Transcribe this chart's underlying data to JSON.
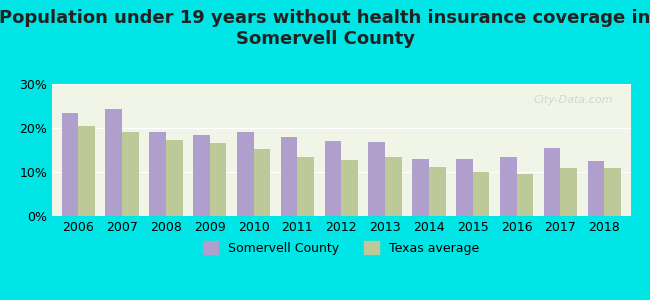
{
  "title": "Population under 19 years without health insurance coverage in\nSomervell County",
  "years": [
    2006,
    2007,
    2008,
    2009,
    2010,
    2011,
    2012,
    2013,
    2014,
    2015,
    2016,
    2017,
    2018
  ],
  "somervell": [
    23.5,
    24.3,
    19.0,
    18.5,
    19.0,
    18.0,
    17.0,
    16.8,
    13.0,
    13.0,
    13.5,
    15.5,
    12.5
  ],
  "texas": [
    20.5,
    19.2,
    17.2,
    16.5,
    15.2,
    13.5,
    12.7,
    13.5,
    11.2,
    10.0,
    9.5,
    10.8,
    10.8
  ],
  "somervell_color": "#b09fcc",
  "texas_color": "#bec99a",
  "bg_outer": "#00e5e5",
  "bg_plot": "#f0f5e8",
  "bg_plot_top": "#ffffff",
  "ylim": [
    0,
    30
  ],
  "yticks": [
    0,
    10,
    20,
    30
  ],
  "ylabel_format": "%",
  "bar_width": 0.38,
  "legend_somervell": "Somervell County",
  "legend_texas": "Texas average",
  "title_fontsize": 13,
  "tick_fontsize": 9
}
